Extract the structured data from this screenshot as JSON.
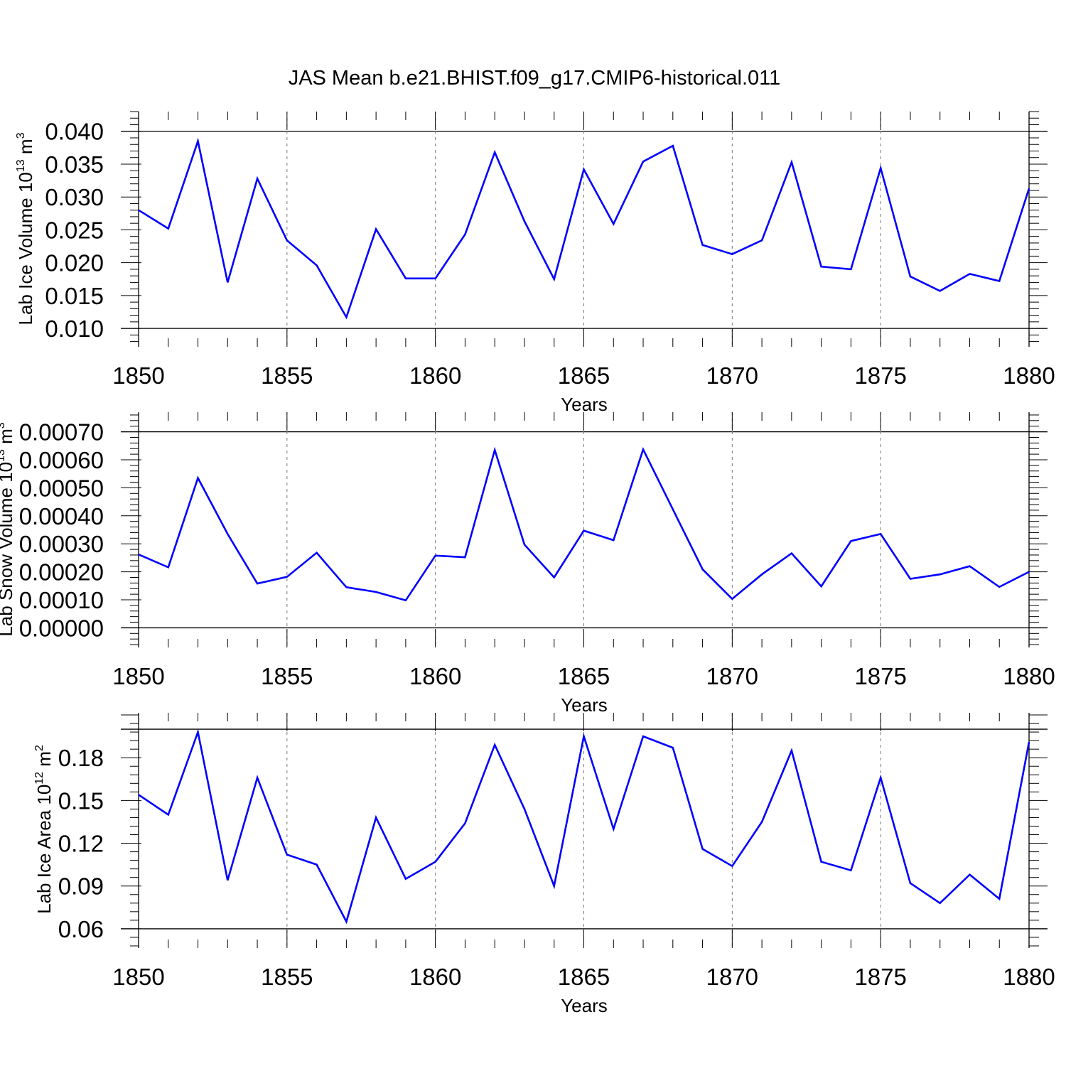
{
  "figure_title": "JAS Mean b.e21.BHIST.f09_g17.CMIP6-historical.011",
  "colors": {
    "line": "#0000ff",
    "axis": "#000000",
    "grid": "#777777"
  },
  "chart_data": [
    {
      "type": "line",
      "title": "JAS Mean b.e21.BHIST.f09_g17.CMIP6-historical.011",
      "xlabel": "Years",
      "ylabel": "Lab Ice Volume 10",
      "ylabel_exp": "13",
      "ylabel_unit": " m",
      "ylabel_unit_exp": "3",
      "xlim": [
        1850,
        1880
      ],
      "ylim": [
        0.0072,
        0.043
      ],
      "x_ticks": [
        1850,
        1855,
        1860,
        1865,
        1870,
        1875,
        1880
      ],
      "x_tick_labels": [
        "1850",
        "1855",
        "1860",
        "1865",
        "1870",
        "1875",
        "1880"
      ],
      "y_ticks": [
        0.01,
        0.015,
        0.02,
        0.025,
        0.03,
        0.035,
        0.04
      ],
      "y_tick_labels": [
        "0.010",
        "0.015",
        "0.020",
        "0.025",
        "0.030",
        "0.035",
        "0.040"
      ],
      "top_line": 0.04,
      "bottom_line": 0.01,
      "x": [
        1850,
        1851,
        1852,
        1853,
        1854,
        1855,
        1856,
        1857,
        1858,
        1859,
        1860,
        1861,
        1862,
        1863,
        1864,
        1865,
        1866,
        1867,
        1868,
        1869,
        1870,
        1871,
        1872,
        1873,
        1874,
        1875,
        1876,
        1877,
        1878,
        1879,
        1880
      ],
      "series": [
        {
          "name": "Lab Ice Volume",
          "values": [
            0.028,
            0.0252,
            0.0385,
            0.017,
            0.0328,
            0.0234,
            0.0196,
            0.0117,
            0.0251,
            0.0176,
            0.0176,
            0.0243,
            0.0368,
            0.0263,
            0.0175,
            0.0342,
            0.0259,
            0.0354,
            0.0378,
            0.0227,
            0.0213,
            0.0234,
            0.0353,
            0.0194,
            0.019,
            0.0344,
            0.0179,
            0.0157,
            0.0183,
            0.0172,
            0.0313
          ]
        }
      ]
    },
    {
      "type": "line",
      "xlabel": "Years",
      "ylabel": "Lab Snow Volume 10",
      "ylabel_exp": "13",
      "ylabel_unit": " m",
      "ylabel_unit_exp": "3",
      "xlim": [
        1850,
        1880
      ],
      "ylim": [
        -7e-05,
        0.00077
      ],
      "x_ticks": [
        1850,
        1855,
        1860,
        1865,
        1870,
        1875,
        1880
      ],
      "x_tick_labels": [
        "1850",
        "1855",
        "1860",
        "1865",
        "1870",
        "1875",
        "1880"
      ],
      "y_ticks": [
        0.0,
        0.0001,
        0.0002,
        0.0003,
        0.0004,
        0.0005,
        0.0006,
        0.0007
      ],
      "y_tick_labels": [
        "0.00000",
        "0.00010",
        "0.00020",
        "0.00030",
        "0.00040",
        "0.00050",
        "0.00060",
        "0.00070"
      ],
      "top_line": 0.0007,
      "bottom_line": 0.0,
      "x": [
        1850,
        1851,
        1852,
        1853,
        1854,
        1855,
        1856,
        1857,
        1858,
        1859,
        1860,
        1861,
        1862,
        1863,
        1864,
        1865,
        1866,
        1867,
        1868,
        1869,
        1870,
        1871,
        1872,
        1873,
        1874,
        1875,
        1876,
        1877,
        1878,
        1879,
        1880
      ],
      "series": [
        {
          "name": "Lab Snow Volume",
          "values": [
            0.000262,
            0.000216,
            0.000535,
            0.000335,
            0.000158,
            0.000182,
            0.000268,
            0.000145,
            0.000128,
            9.8e-05,
            0.000258,
            0.000252,
            0.000635,
            0.000297,
            0.00018,
            0.000347,
            0.000313,
            0.000637,
            0.000423,
            0.000209,
            0.000103,
            0.000191,
            0.000266,
            0.000148,
            0.00031,
            0.000335,
            0.000175,
            0.000191,
            0.00022,
            0.000146,
            0.0002
          ]
        }
      ]
    },
    {
      "type": "line",
      "xlabel": "Years",
      "ylabel": "Lab Ice Area 10",
      "ylabel_exp": "12",
      "ylabel_unit": " m",
      "ylabel_unit_exp": "2",
      "xlim": [
        1850,
        1880
      ],
      "ylim": [
        0.0465,
        0.2115
      ],
      "x_ticks": [
        1850,
        1855,
        1860,
        1865,
        1870,
        1875,
        1880
      ],
      "x_tick_labels": [
        "1850",
        "1855",
        "1860",
        "1865",
        "1870",
        "1875",
        "1880"
      ],
      "y_ticks": [
        0.06,
        0.09,
        0.12,
        0.15,
        0.18
      ],
      "y_tick_labels": [
        "0.06",
        "0.09",
        "0.12",
        "0.15",
        "0.18"
      ],
      "top_line": 0.2,
      "bottom_line": 0.06,
      "x": [
        1850,
        1851,
        1852,
        1853,
        1854,
        1855,
        1856,
        1857,
        1858,
        1859,
        1860,
        1861,
        1862,
        1863,
        1864,
        1865,
        1866,
        1867,
        1868,
        1869,
        1870,
        1871,
        1872,
        1873,
        1874,
        1875,
        1876,
        1877,
        1878,
        1879,
        1880
      ],
      "series": [
        {
          "name": "Lab Ice Area",
          "values": [
            0.154,
            0.14,
            0.198,
            0.094,
            0.166,
            0.112,
            0.105,
            0.065,
            0.138,
            0.095,
            0.107,
            0.134,
            0.189,
            0.144,
            0.09,
            0.195,
            0.13,
            0.195,
            0.187,
            0.116,
            0.104,
            0.135,
            0.185,
            0.107,
            0.101,
            0.166,
            0.092,
            0.078,
            0.098,
            0.081,
            0.191
          ]
        }
      ]
    }
  ]
}
